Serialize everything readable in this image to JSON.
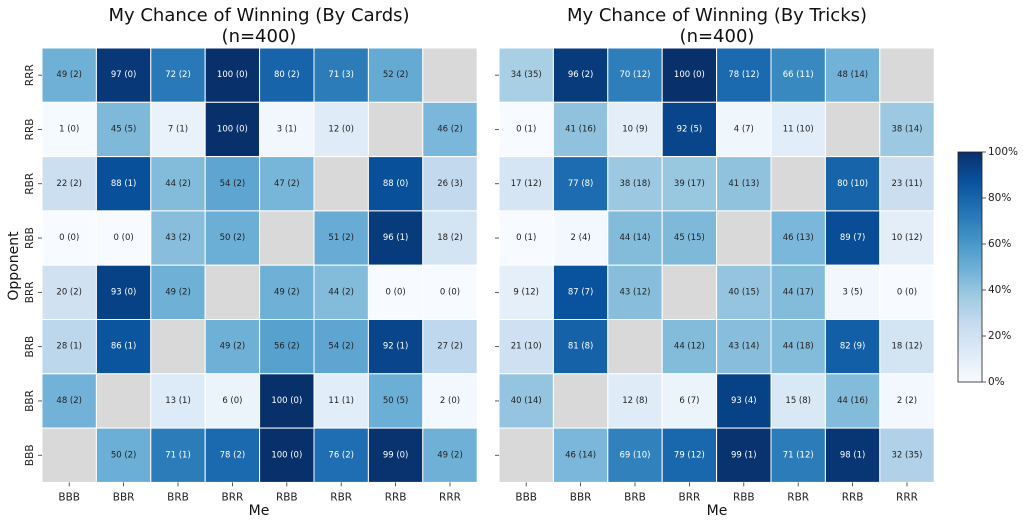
{
  "chart_data": [
    {
      "type": "heatmap",
      "title_line1": "My Chance of Winning (By Cards)",
      "title_line2": "(n=400)",
      "xlabel": "Me",
      "ylabel": "Opponent",
      "x_categories": [
        "BBB",
        "BBR",
        "BRB",
        "BRR",
        "RBB",
        "RBR",
        "RRB",
        "RRR"
      ],
      "y_categories": [
        "RRR",
        "RRB",
        "RBR",
        "RBB",
        "BRR",
        "BRB",
        "BBR",
        "BBB"
      ],
      "values": [
        [
          49,
          97,
          72,
          100,
          80,
          71,
          52,
          null
        ],
        [
          1,
          45,
          7,
          100,
          3,
          12,
          null,
          46
        ],
        [
          22,
          88,
          44,
          54,
          47,
          null,
          88,
          26
        ],
        [
          0,
          0,
          43,
          50,
          null,
          51,
          96,
          18
        ],
        [
          20,
          93,
          49,
          null,
          49,
          44,
          0,
          0
        ],
        [
          28,
          86,
          null,
          49,
          56,
          54,
          92,
          27
        ],
        [
          48,
          null,
          13,
          6,
          100,
          11,
          50,
          2
        ],
        [
          null,
          50,
          71,
          78,
          100,
          76,
          99,
          49
        ]
      ],
      "draws": [
        [
          2,
          0,
          2,
          0,
          2,
          3,
          2,
          null
        ],
        [
          0,
          5,
          1,
          0,
          1,
          0,
          null,
          2
        ],
        [
          2,
          1,
          2,
          2,
          2,
          null,
          0,
          3
        ],
        [
          0,
          0,
          2,
          2,
          null,
          2,
          1,
          2
        ],
        [
          2,
          0,
          2,
          null,
          2,
          2,
          0,
          0
        ],
        [
          1,
          1,
          null,
          2,
          2,
          2,
          1,
          2
        ],
        [
          2,
          null,
          1,
          0,
          0,
          1,
          5,
          0
        ],
        [
          null,
          2,
          1,
          2,
          0,
          2,
          0,
          2
        ]
      ]
    },
    {
      "type": "heatmap",
      "title_line1": "My Chance of Winning (By Tricks)",
      "title_line2": "(n=400)",
      "xlabel": "Me",
      "ylabel": "",
      "x_categories": [
        "BBB",
        "BBR",
        "BRB",
        "BRR",
        "RBB",
        "RBR",
        "RRB",
        "RRR"
      ],
      "y_categories": [
        "RRR",
        "RRB",
        "RBR",
        "RBB",
        "BRR",
        "BRB",
        "BBR",
        "BBB"
      ],
      "values": [
        [
          34,
          96,
          70,
          100,
          78,
          66,
          48,
          null
        ],
        [
          0,
          41,
          10,
          92,
          4,
          11,
          null,
          38
        ],
        [
          17,
          77,
          38,
          39,
          41,
          null,
          80,
          23
        ],
        [
          0,
          2,
          44,
          45,
          null,
          46,
          89,
          10
        ],
        [
          9,
          87,
          43,
          null,
          40,
          44,
          3,
          0
        ],
        [
          21,
          81,
          null,
          44,
          43,
          44,
          82,
          18
        ],
        [
          40,
          null,
          12,
          6,
          93,
          15,
          44,
          2
        ],
        [
          null,
          46,
          69,
          79,
          99,
          71,
          98,
          32
        ]
      ],
      "draws": [
        [
          35,
          2,
          12,
          0,
          12,
          11,
          14,
          null
        ],
        [
          1,
          16,
          9,
          5,
          7,
          10,
          null,
          14
        ],
        [
          12,
          8,
          18,
          17,
          13,
          null,
          10,
          11
        ],
        [
          1,
          4,
          14,
          15,
          null,
          13,
          7,
          12
        ],
        [
          12,
          7,
          12,
          null,
          15,
          17,
          5,
          0
        ],
        [
          10,
          8,
          null,
          12,
          14,
          18,
          9,
          12
        ],
        [
          14,
          null,
          8,
          7,
          4,
          8,
          16,
          2
        ],
        [
          null,
          14,
          10,
          12,
          1,
          12,
          1,
          35
        ]
      ]
    }
  ],
  "colorbar": {
    "min": 0,
    "max": 100,
    "tick_labels": [
      "0%",
      "20%",
      "40%",
      "60%",
      "80%",
      "100%"
    ],
    "colormap": "Blues"
  },
  "missing_color": "#d9d9d9"
}
